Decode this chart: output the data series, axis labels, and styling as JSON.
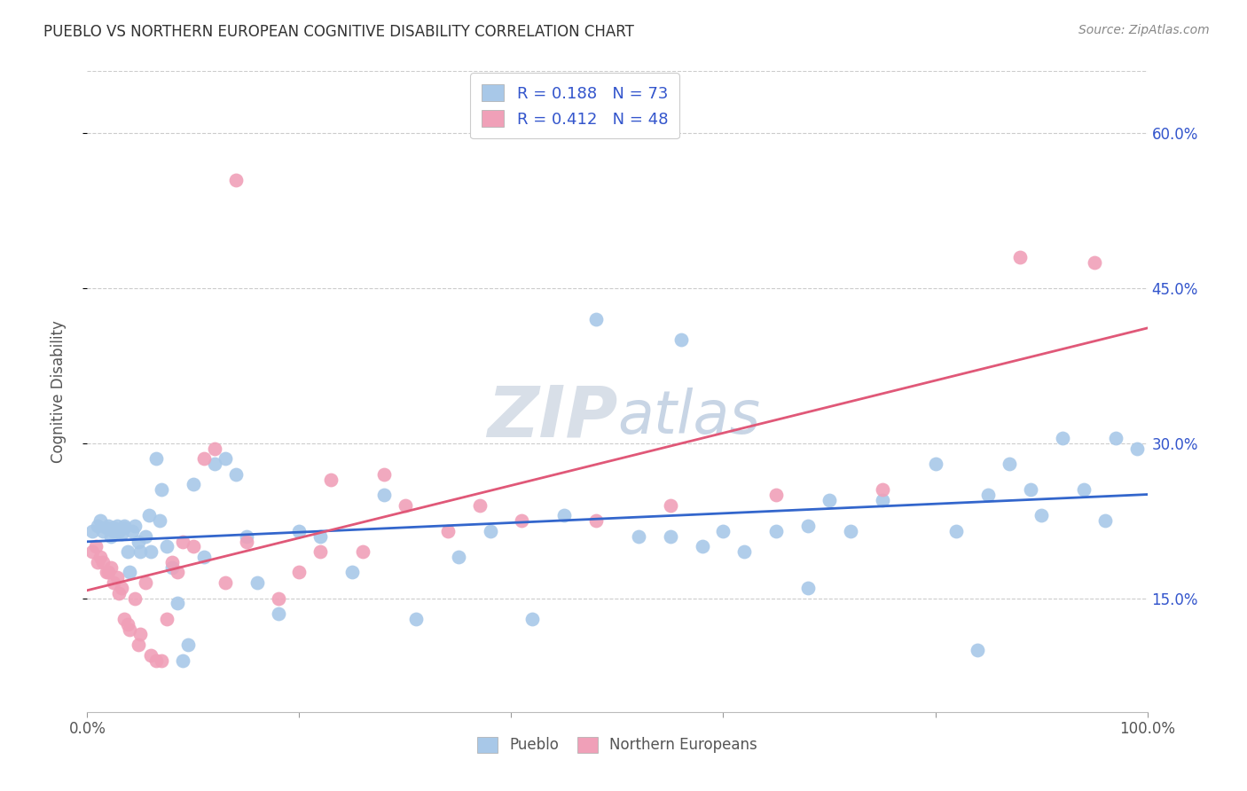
{
  "title": "PUEBLO VS NORTHERN EUROPEAN COGNITIVE DISABILITY CORRELATION CHART",
  "source": "Source: ZipAtlas.com",
  "ylabel": "Cognitive Disability",
  "xlim": [
    0.0,
    1.0
  ],
  "ylim": [
    0.04,
    0.66
  ],
  "yticks": [
    0.15,
    0.3,
    0.45,
    0.6
  ],
  "ytick_labels": [
    "15.0%",
    "30.0%",
    "45.0%",
    "60.0%"
  ],
  "xticks": [
    0.0,
    0.2,
    0.4,
    0.6,
    0.8,
    1.0
  ],
  "pueblo_R": 0.188,
  "pueblo_N": 73,
  "northern_R": 0.412,
  "northern_N": 48,
  "pueblo_color": "#A8C8E8",
  "northern_color": "#F0A0B8",
  "pueblo_line_color": "#3366CC",
  "northern_line_color": "#E05878",
  "legend_text_color": "#3355CC",
  "watermark_color": "#E0E8F0",
  "background_color": "#FFFFFF",
  "grid_color": "#CCCCCC",
  "pueblo_x": [
    0.005,
    0.01,
    0.012,
    0.015,
    0.018,
    0.02,
    0.022,
    0.025,
    0.025,
    0.028,
    0.03,
    0.032,
    0.035,
    0.035,
    0.038,
    0.04,
    0.042,
    0.045,
    0.048,
    0.05,
    0.055,
    0.058,
    0.06,
    0.065,
    0.068,
    0.07,
    0.075,
    0.08,
    0.085,
    0.09,
    0.095,
    0.1,
    0.11,
    0.12,
    0.13,
    0.14,
    0.15,
    0.16,
    0.18,
    0.2,
    0.22,
    0.25,
    0.28,
    0.31,
    0.35,
    0.38,
    0.42,
    0.45,
    0.48,
    0.52,
    0.55,
    0.58,
    0.6,
    0.62,
    0.65,
    0.68,
    0.7,
    0.72,
    0.75,
    0.8,
    0.82,
    0.85,
    0.87,
    0.89,
    0.9,
    0.92,
    0.94,
    0.96,
    0.97,
    0.99,
    0.56,
    0.68,
    0.84
  ],
  "pueblo_y": [
    0.215,
    0.22,
    0.225,
    0.215,
    0.218,
    0.22,
    0.21,
    0.215,
    0.218,
    0.22,
    0.215,
    0.212,
    0.218,
    0.22,
    0.195,
    0.175,
    0.215,
    0.22,
    0.205,
    0.195,
    0.21,
    0.23,
    0.195,
    0.285,
    0.225,
    0.255,
    0.2,
    0.18,
    0.145,
    0.09,
    0.105,
    0.26,
    0.19,
    0.28,
    0.285,
    0.27,
    0.21,
    0.165,
    0.135,
    0.215,
    0.21,
    0.175,
    0.25,
    0.13,
    0.19,
    0.215,
    0.13,
    0.23,
    0.42,
    0.21,
    0.21,
    0.2,
    0.215,
    0.195,
    0.215,
    0.22,
    0.245,
    0.215,
    0.245,
    0.28,
    0.215,
    0.25,
    0.28,
    0.255,
    0.23,
    0.305,
    0.255,
    0.225,
    0.305,
    0.295,
    0.4,
    0.16,
    0.1
  ],
  "northern_x": [
    0.005,
    0.008,
    0.01,
    0.012,
    0.015,
    0.018,
    0.02,
    0.022,
    0.025,
    0.028,
    0.03,
    0.032,
    0.035,
    0.038,
    0.04,
    0.045,
    0.048,
    0.05,
    0.055,
    0.06,
    0.065,
    0.07,
    0.075,
    0.08,
    0.085,
    0.09,
    0.1,
    0.11,
    0.12,
    0.13,
    0.15,
    0.18,
    0.2,
    0.22,
    0.26,
    0.3,
    0.34,
    0.37,
    0.41,
    0.48,
    0.55,
    0.65,
    0.75,
    0.88,
    0.14,
    0.28,
    0.23,
    0.95
  ],
  "northern_y": [
    0.195,
    0.2,
    0.185,
    0.19,
    0.185,
    0.175,
    0.175,
    0.18,
    0.165,
    0.17,
    0.155,
    0.16,
    0.13,
    0.125,
    0.12,
    0.15,
    0.105,
    0.115,
    0.165,
    0.095,
    0.09,
    0.09,
    0.13,
    0.185,
    0.175,
    0.205,
    0.2,
    0.285,
    0.295,
    0.165,
    0.205,
    0.15,
    0.175,
    0.195,
    0.195,
    0.24,
    0.215,
    0.24,
    0.225,
    0.225,
    0.24,
    0.25,
    0.255,
    0.48,
    0.555,
    0.27,
    0.265,
    0.475
  ]
}
